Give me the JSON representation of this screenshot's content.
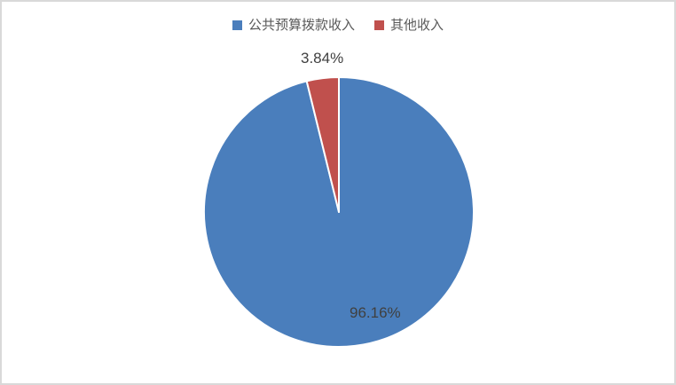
{
  "chart_data": {
    "type": "pie",
    "title": "",
    "categories": [
      "公共预算拨款收入",
      "其他收入"
    ],
    "values": [
      96.16,
      3.84
    ],
    "data_labels": [
      "96.16%",
      "3.84%"
    ],
    "colors": [
      "#4A7EBC",
      "#C0504D"
    ],
    "legend_position": "top",
    "start_angle_deg": 0,
    "direction": "clockwise",
    "label_format": "percent",
    "background_color": "#FFFFFF",
    "frame_border_color": "#D9D9D9",
    "label_text_color": "#404040",
    "legend_text_color": "#595959",
    "slice_separator_color": "#FFFFFF"
  }
}
